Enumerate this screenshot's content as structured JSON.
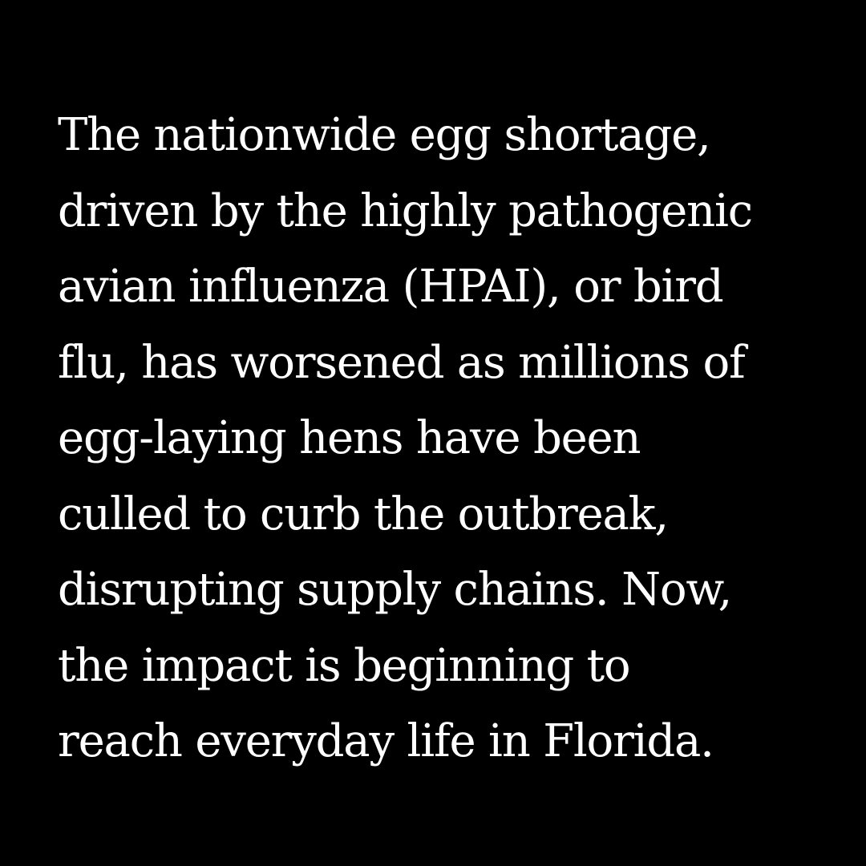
{
  "colors": {
    "background": "#000000",
    "text": "#ffffff"
  },
  "paragraph": {
    "lines": [
      "The nationwide egg shortage,",
      "driven by the highly pathogenic",
      "avian influenza (HPAI), or bird",
      "flu, has worsened as millions of",
      "egg-laying hens have been",
      "culled to curb the outbreak,",
      "disrupting supply chains. Now,",
      "the impact is beginning to",
      "reach everyday life in Florida."
    ]
  }
}
